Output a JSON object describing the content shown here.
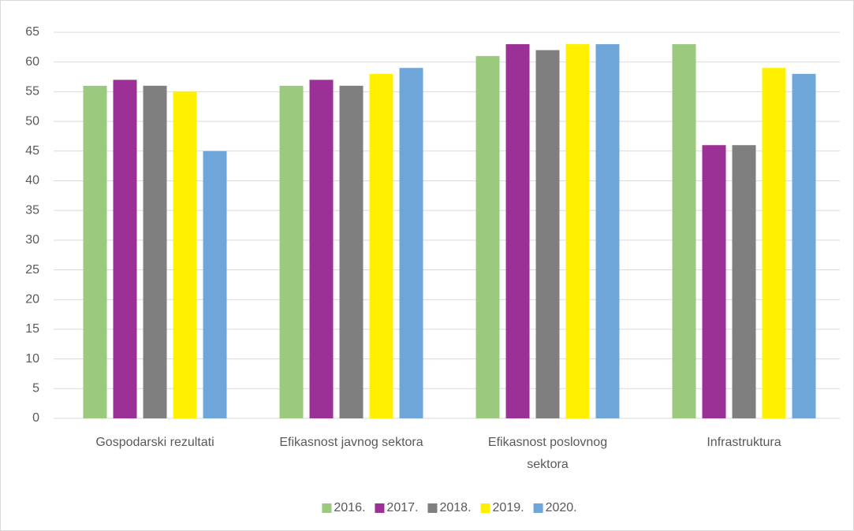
{
  "chart_data": {
    "type": "bar",
    "categories": [
      "Gospodarski rezultati",
      "Efikasnost javnog sektora",
      "Efikasnost poslovnog sektora",
      "Infrastruktura"
    ],
    "series": [
      {
        "name": "2016.",
        "color": "#9bc97d",
        "values": [
          56,
          56,
          61,
          63
        ]
      },
      {
        "name": "2017.",
        "color": "#9b3197",
        "values": [
          57,
          57,
          63,
          46
        ]
      },
      {
        "name": "2018.",
        "color": "#7f7f7f",
        "values": [
          56,
          56,
          62,
          46
        ]
      },
      {
        "name": "2019.",
        "color": "#fff000",
        "values": [
          55,
          58,
          63,
          59
        ]
      },
      {
        "name": "2020.",
        "color": "#6ea6d9",
        "values": [
          45,
          59,
          63,
          58
        ]
      }
    ],
    "ylim": [
      0,
      65
    ],
    "yticks": [
      0,
      5,
      10,
      15,
      20,
      25,
      30,
      35,
      40,
      45,
      50,
      55,
      60,
      65
    ],
    "grid": true,
    "legend": "bottom"
  }
}
